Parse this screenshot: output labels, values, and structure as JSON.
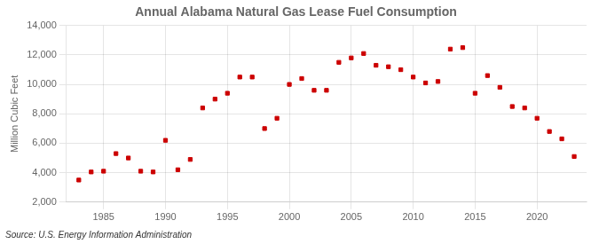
{
  "chart_data": {
    "type": "scatter",
    "title": "Annual Alabama Natural Gas Lease Fuel Consumption",
    "ylabel": "Million Cubic Feet",
    "annotations": [
      "Source: U.S. Energy Information Administration"
    ],
    "color": "#cc0000",
    "marker": "square",
    "grid": true,
    "x": [
      1983,
      1984,
      1985,
      1986,
      1987,
      1988,
      1989,
      1990,
      1991,
      1992,
      1993,
      1994,
      1995,
      1996,
      1997,
      1998,
      1999,
      2000,
      2001,
      2002,
      2003,
      2004,
      2005,
      2006,
      2007,
      2008,
      2009,
      2010,
      2011,
      2012,
      2013,
      2014,
      2015,
      2016,
      2017,
      2018,
      2019,
      2020,
      2021,
      2022,
      2023
    ],
    "values": [
      3500,
      4050,
      4100,
      5300,
      5000,
      4100,
      4050,
      6200,
      4200,
      4900,
      8400,
      9000,
      9400,
      10500,
      10500,
      7000,
      7700,
      10000,
      10400,
      9600,
      9600,
      11500,
      11800,
      12100,
      11300,
      11200,
      11000,
      10500,
      10100,
      10200,
      12400,
      12500,
      9400,
      10600,
      9800,
      8500,
      8400,
      7700,
      6800,
      6300,
      5100
    ],
    "xlim": [
      1982,
      2024
    ],
    "xticks": [
      1985,
      1990,
      1995,
      2000,
      2005,
      2010,
      2015,
      2020
    ],
    "ylim": [
      2000,
      14000
    ],
    "yticks": [
      {
        "value": 2000,
        "label": "2,000"
      },
      {
        "value": 4000,
        "label": "4,000"
      },
      {
        "value": 6000,
        "label": "6,000"
      },
      {
        "value": 8000,
        "label": "8,000"
      },
      {
        "value": 10000,
        "label": "10,000"
      },
      {
        "value": 12000,
        "label": "12,000"
      },
      {
        "value": 14000,
        "label": "14,000"
      }
    ]
  }
}
